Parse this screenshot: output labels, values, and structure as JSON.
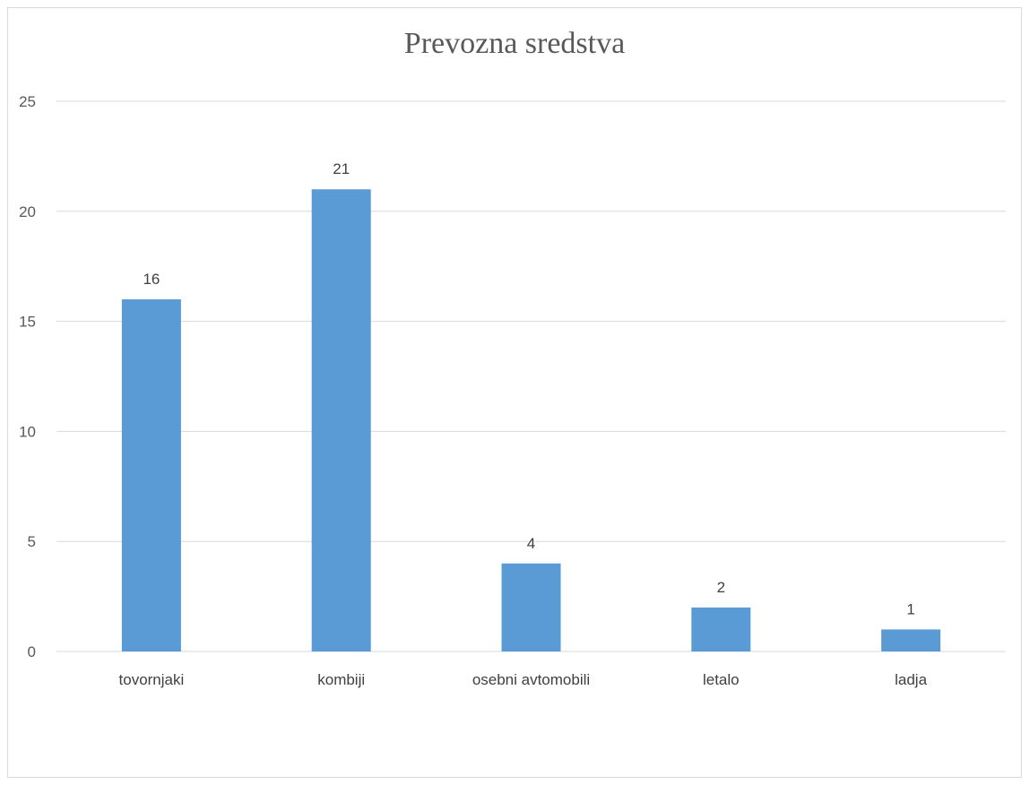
{
  "chart_data": {
    "type": "bar",
    "title": "Prevozna sredstva",
    "categories": [
      "tovornjaki",
      "kombiji",
      "osebni avtomobili",
      "letalo",
      "ladja"
    ],
    "values": [
      16,
      21,
      4,
      2,
      1
    ],
    "data_labels": [
      "16",
      "21",
      "4",
      "2",
      "1"
    ],
    "yticks": [
      "0",
      "5",
      "10",
      "15",
      "20",
      "25"
    ],
    "ylim": [
      0,
      25
    ],
    "grid": true,
    "bar_color": "#5b9bd5",
    "grid_color": "#d9d9d9",
    "legend": "none"
  }
}
